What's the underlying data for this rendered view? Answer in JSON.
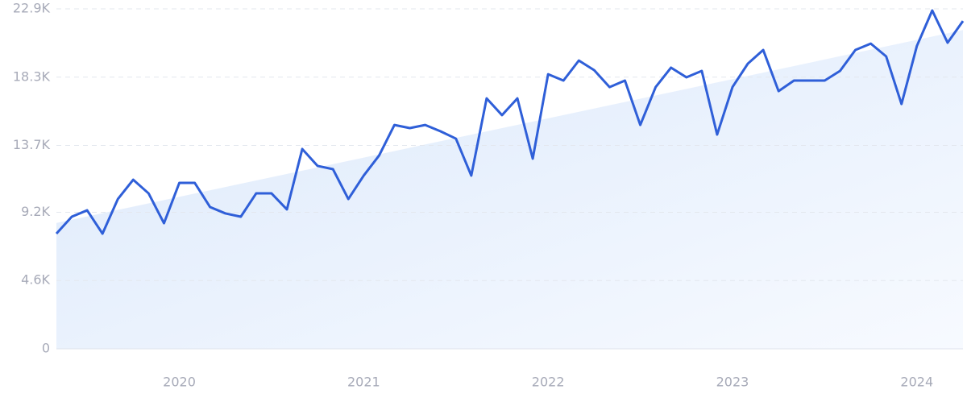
{
  "chart_data": {
    "type": "line",
    "categories": [
      null,
      null,
      null,
      null,
      null,
      null,
      null,
      null,
      "2020",
      null,
      null,
      null,
      null,
      null,
      null,
      null,
      null,
      null,
      null,
      null,
      "2021",
      null,
      null,
      null,
      null,
      null,
      null,
      null,
      null,
      null,
      null,
      null,
      "2022",
      null,
      null,
      null,
      null,
      null,
      null,
      null,
      null,
      null,
      null,
      null,
      "2023",
      null,
      null,
      null,
      null,
      null,
      null,
      null,
      null,
      null,
      null,
      null,
      "2024",
      null,
      null,
      null
    ],
    "series": [
      {
        "color": "#2f5fd8",
        "values": [
          7760,
          8900,
          9330,
          7760,
          10090,
          11390,
          10470,
          8460,
          11180,
          11180,
          9550,
          9120,
          8900,
          10470,
          10470,
          9390,
          13460,
          12320,
          12100,
          10090,
          11670,
          13020,
          15080,
          14870,
          15080,
          14650,
          14160,
          11670,
          16870,
          15740,
          16870,
          12810,
          18500,
          18070,
          19420,
          18770,
          17630,
          18070,
          15080,
          17630,
          18940,
          18290,
          18720,
          14430,
          17630,
          19210,
          20130,
          17360,
          18070,
          18070,
          18070,
          18720,
          20130,
          20560,
          19700,
          16490,
          20400,
          22790,
          20620,
          22080
        ]
      }
    ],
    "ylim": [
      0,
      22900
    ],
    "yticks": [
      0,
      {
        "value": 4600,
        "label": "4.6K"
      },
      {
        "value": 9200,
        "label": "9.2K"
      },
      {
        "value": 13700,
        "label": "13.7K"
      },
      {
        "value": 18300,
        "label": "18.3K"
      },
      {
        "value": 22900,
        "label": "22.9K"
      }
    ],
    "grid": true
  }
}
